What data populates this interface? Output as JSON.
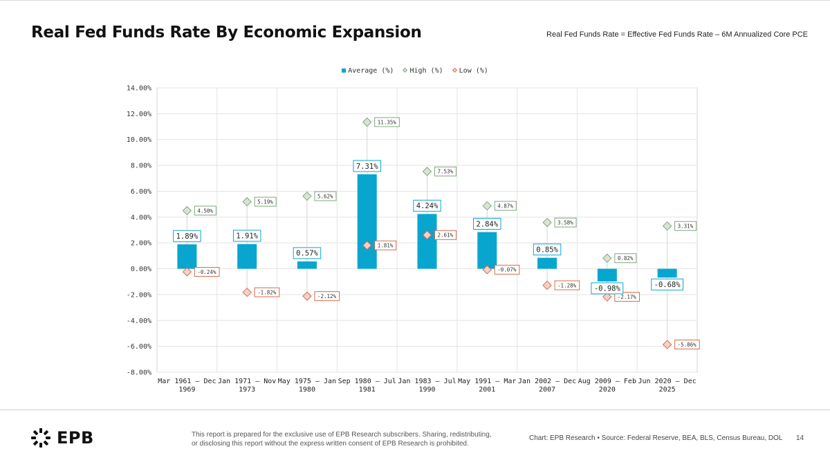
{
  "header": {
    "title": "Real Fed Funds Rate By Economic Expansion",
    "subtitle": "Real Fed Funds Rate = Effective Fed Funds Rate – 6M Annualized Core PCE"
  },
  "legend": {
    "average": "Average (%)",
    "high": "High (%)",
    "low": "Low (%)"
  },
  "chart_data": {
    "type": "bar",
    "title": "Real Fed Funds Rate By Economic Expansion",
    "xlabel": "",
    "ylabel": "",
    "ylim": [
      -8,
      14
    ],
    "yticks": [
      14,
      12,
      10,
      8,
      6,
      4,
      2,
      0,
      -2,
      -4,
      -6,
      -8
    ],
    "ytick_labels": [
      "14.00%",
      "12.00%",
      "10.00%",
      "8.00%",
      "6.00%",
      "4.00%",
      "2.00%",
      "0.00%",
      "-2.00%",
      "-4.00%",
      "-6.00%",
      "-8.00%"
    ],
    "categories": [
      [
        "Mar 1961 – Dec",
        "1969"
      ],
      [
        "Jan 1971 – Nov",
        "1973"
      ],
      [
        "May 1975 – Jan",
        "1980"
      ],
      [
        "Sep 1980 – Jul",
        "1981"
      ],
      [
        "Jan 1983 – Jul",
        "1990"
      ],
      [
        "May 1991 – Mar",
        "2001"
      ],
      [
        "Jan 2002 – Dec",
        "2007"
      ],
      [
        "Aug 2009 – Feb",
        "2020"
      ],
      [
        "Jun 2020 – Dec",
        "2025"
      ]
    ],
    "series": [
      {
        "name": "Average (%)",
        "kind": "bar",
        "color": "#08a6cf",
        "values": [
          1.89,
          1.91,
          0.57,
          7.31,
          4.24,
          2.84,
          0.85,
          -0.98,
          -0.68
        ],
        "labels": [
          "1.89%",
          "1.91%",
          "0.57%",
          "7.31%",
          "4.24%",
          "2.84%",
          "0.85%",
          "-0.98%",
          "-0.68%"
        ]
      },
      {
        "name": "High (%)",
        "kind": "diamond",
        "color": "#7fa57f",
        "values": [
          4.5,
          5.19,
          5.62,
          11.35,
          7.53,
          4.87,
          3.58,
          0.82,
          3.31
        ],
        "labels": [
          "4.50%",
          "5.19%",
          "5.62%",
          "11.35%",
          "7.53%",
          "4.87%",
          "3.58%",
          "0.82%",
          "3.31%"
        ]
      },
      {
        "name": "Low (%)",
        "kind": "diamond",
        "color": "#d9694c",
        "values": [
          -0.24,
          -1.82,
          -2.12,
          1.81,
          2.61,
          -0.07,
          -1.28,
          -2.17,
          -5.86
        ],
        "labels": [
          "-0.24%",
          "-1.82%",
          "-2.12%",
          "1.81%",
          "2.61%",
          "-0.07%",
          "-1.28%",
          "-2.17%",
          "-5.86%"
        ]
      }
    ]
  },
  "footer": {
    "logo_text": "EPB",
    "disclaimer_line1": "This report is prepared for the exclusive use of EPB Research subscribers. Sharing, redistributing,",
    "disclaimer_line2": "or disclosing this report without the express written consent of EPB Research is prohibited.",
    "source": "Chart: EPB Research  •  Source: Federal Reserve, BEA, BLS, Census Bureau, DOL",
    "page_number": "14"
  }
}
